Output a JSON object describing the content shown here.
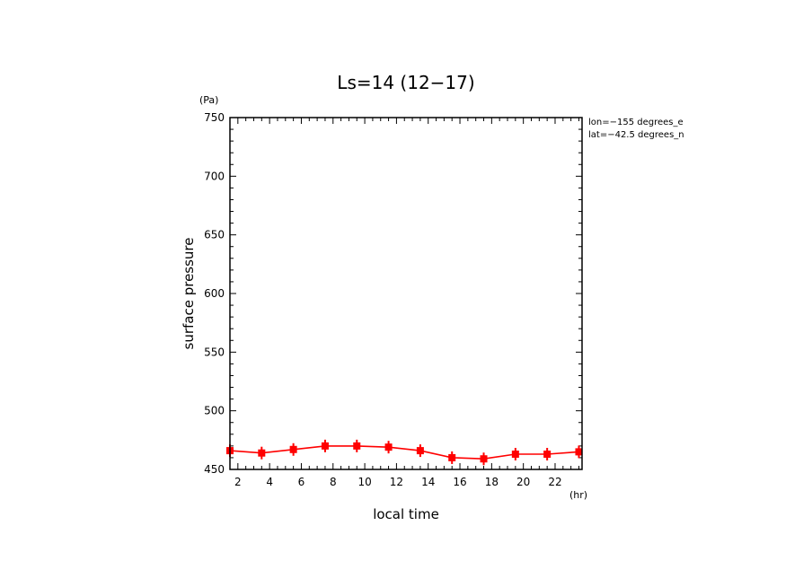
{
  "chart_data": {
    "type": "line",
    "title": "Ls=14 (12−17)",
    "xlabel": "local time",
    "ylabel": "surface pressure",
    "xunit": "(hr)",
    "yunit": "(Pa)",
    "xlim": [
      1.5,
      23.7
    ],
    "ylim": [
      450,
      750
    ],
    "xticks": [
      2,
      4,
      6,
      8,
      10,
      12,
      14,
      16,
      18,
      20,
      22
    ],
    "yticks": [
      450,
      500,
      550,
      600,
      650,
      700,
      750
    ],
    "annotations": [
      "lon=−155 degrees_e",
      "lat=−42.5 degrees_n"
    ],
    "grid": false,
    "series": [
      {
        "color": "#ff0000",
        "x": [
          1.5,
          3.5,
          5.5,
          7.5,
          9.5,
          11.5,
          13.5,
          15.5,
          17.5,
          19.5,
          21.5,
          23.5
        ],
        "y": [
          466,
          464,
          467,
          470,
          470,
          469,
          466,
          460,
          459,
          463,
          463,
          465
        ]
      }
    ]
  }
}
